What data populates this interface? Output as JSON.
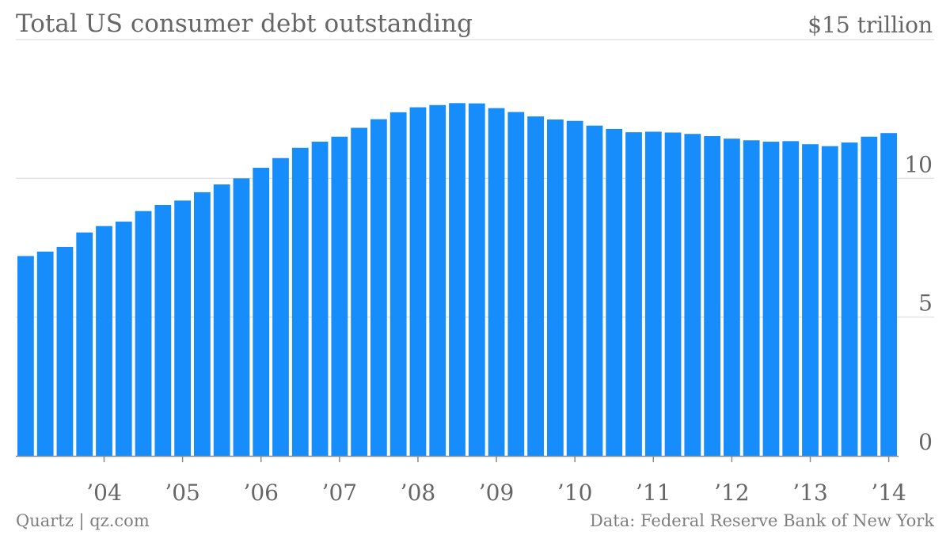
{
  "chart_data": {
    "type": "bar",
    "title": "Total US consumer debt outstanding",
    "xlabel": "",
    "ylabel": "",
    "y_tick_labels": [
      "0",
      "5",
      "10",
      "$15 trillion"
    ],
    "y_tick_values": [
      0,
      5,
      10,
      15
    ],
    "ylim": [
      0,
      15
    ],
    "grid": true,
    "color": "#168dfb",
    "x_tick_labels": [
      "’04",
      "’05",
      "’06",
      "’07",
      "’08",
      "’09",
      "’10",
      "’11",
      "’12",
      "’13",
      "’14"
    ],
    "x_tick_quarter_index": [
      4,
      8,
      12,
      16,
      20,
      24,
      28,
      32,
      36,
      40,
      44
    ],
    "categories": [
      "2003 Q1",
      "2003 Q2",
      "2003 Q3",
      "2003 Q4",
      "2004 Q1",
      "2004 Q2",
      "2004 Q3",
      "2004 Q4",
      "2005 Q1",
      "2005 Q2",
      "2005 Q3",
      "2005 Q4",
      "2006 Q1",
      "2006 Q2",
      "2006 Q3",
      "2006 Q4",
      "2007 Q1",
      "2007 Q2",
      "2007 Q3",
      "2007 Q4",
      "2008 Q1",
      "2008 Q2",
      "2008 Q3",
      "2008 Q4",
      "2009 Q1",
      "2009 Q2",
      "2009 Q3",
      "2009 Q4",
      "2010 Q1",
      "2010 Q2",
      "2010 Q3",
      "2010 Q4",
      "2011 Q1",
      "2011 Q2",
      "2011 Q3",
      "2011 Q4",
      "2012 Q1",
      "2012 Q2",
      "2012 Q3",
      "2012 Q4",
      "2013 Q1",
      "2013 Q2",
      "2013 Q3",
      "2013 Q4",
      "2014 Q1"
    ],
    "values": [
      7.2,
      7.36,
      7.53,
      8.05,
      8.28,
      8.44,
      8.82,
      9.04,
      9.2,
      9.5,
      9.78,
      10.0,
      10.38,
      10.73,
      11.1,
      11.32,
      11.5,
      11.82,
      12.13,
      12.38,
      12.56,
      12.64,
      12.71,
      12.7,
      12.53,
      12.39,
      12.23,
      12.12,
      12.07,
      11.9,
      11.78,
      11.66,
      11.68,
      11.65,
      11.6,
      11.52,
      11.43,
      11.37,
      11.32,
      11.34,
      11.23,
      11.16,
      11.29,
      11.5,
      11.63
    ]
  },
  "source": {
    "left": "Quartz | qz.com",
    "right": "Data: Federal Reserve Bank of New York"
  }
}
